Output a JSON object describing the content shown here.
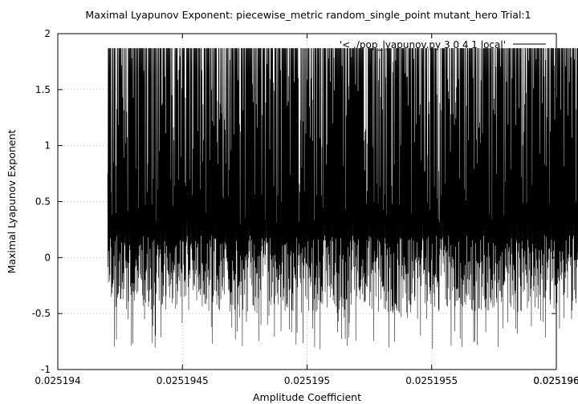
{
  "chart_data": {
    "type": "line",
    "title": "Maximal Lyapunov Exponent: piecewise_metric random_single_point mutant_hero Trial:1",
    "xlabel": "Amplitude Coefficient",
    "ylabel": "Maximal Lyapunov Exponent",
    "xlim": [
      0.025194,
      0.025196
    ],
    "ylim": [
      -1,
      2
    ],
    "x_ticks": [
      0.025194,
      0.0251945,
      0.025195,
      0.0251955,
      0.025196,
      0.0251965
    ],
    "x_tick_labels": [
      "0.025194",
      "0.0251945",
      "0.025195",
      "0.0251955",
      "0.025196",
      "0.025196"
    ],
    "y_ticks": [
      -1,
      -0.5,
      0,
      0.5,
      1,
      1.5,
      2
    ],
    "y_tick_labels": [
      "-1",
      "-0.5",
      "0",
      "0.5",
      "1",
      "1.5",
      "2"
    ],
    "grid": true,
    "legend_position": "top-right",
    "series": [
      {
        "name": "'< ./pop_lyapunov.py 3 0 4 1 local'",
        "color": "#000000",
        "x_start": 0.0251942,
        "x_end": 0.0251962,
        "upper_value": 1.87,
        "typical_min": -0.5,
        "global_min": -0.82,
        "global_max": 1.88
      }
    ]
  }
}
